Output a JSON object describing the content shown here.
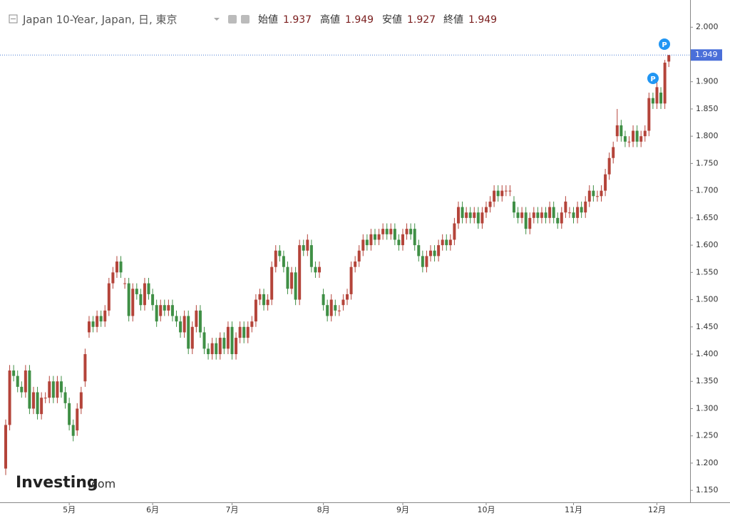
{
  "header": {
    "title": "Japan 10-Year, Japan, 日, 東京",
    "open_label": "始値",
    "high_label": "高値",
    "low_label": "安値",
    "close_label": "終値"
  },
  "logo": {
    "brand": "Investing",
    "suffix": ".com"
  },
  "chart_data": {
    "type": "candlestick",
    "up_color": "#b4443a",
    "down_color": "#3f8f45",
    "categories": [
      null,
      null,
      null,
      null,
      null,
      null,
      null,
      null,
      null,
      null,
      null,
      null,
      null,
      null,
      null,
      null,
      "5月",
      null,
      null,
      null,
      null,
      null,
      null,
      null,
      null,
      null,
      null,
      null,
      null,
      null,
      null,
      null,
      null,
      null,
      null,
      null,
      null,
      "6月",
      null,
      null,
      null,
      null,
      null,
      null,
      null,
      null,
      null,
      null,
      null,
      null,
      null,
      null,
      null,
      null,
      null,
      null,
      null,
      "7月",
      null,
      null,
      null,
      null,
      null,
      null,
      null,
      null,
      null,
      null,
      null,
      null,
      null,
      null,
      null,
      null,
      null,
      null,
      null,
      null,
      null,
      null,
      "8月",
      null,
      null,
      null,
      null,
      null,
      null,
      null,
      null,
      null,
      null,
      null,
      null,
      null,
      null,
      null,
      null,
      null,
      null,
      null,
      "9月",
      null,
      null,
      null,
      null,
      null,
      null,
      null,
      null,
      null,
      null,
      null,
      null,
      null,
      null,
      null,
      null,
      null,
      null,
      null,
      null,
      "10月",
      null,
      null,
      null,
      null,
      null,
      null,
      null,
      null,
      null,
      null,
      null,
      null,
      null,
      null,
      null,
      null,
      null,
      null,
      null,
      null,
      null,
      "11月",
      null,
      null,
      null,
      null,
      null,
      null,
      null,
      null,
      null,
      null,
      null,
      null,
      null,
      null,
      null,
      null,
      null,
      null,
      null,
      null,
      "12月",
      null,
      null,
      null
    ],
    "open": [
      1.19,
      1.27,
      1.37,
      1.36,
      1.34,
      1.33,
      1.37,
      1.3,
      1.33,
      1.29,
      1.32,
      1.32,
      1.35,
      1.32,
      1.35,
      1.33,
      1.31,
      1.27,
      1.26,
      1.3,
      1.35,
      1.44,
      1.46,
      1.45,
      1.47,
      1.46,
      1.48,
      1.53,
      1.55,
      1.57,
      1.53,
      1.53,
      1.47,
      1.52,
      1.51,
      1.49,
      1.53,
      1.51,
      1.49,
      1.47,
      1.49,
      1.48,
      1.49,
      1.47,
      1.46,
      1.44,
      1.47,
      1.41,
      1.45,
      1.48,
      1.44,
      1.41,
      1.4,
      1.42,
      1.4,
      1.43,
      1.41,
      1.45,
      1.4,
      1.43,
      1.45,
      1.43,
      1.45,
      1.46,
      1.5,
      1.51,
      1.49,
      1.5,
      1.56,
      1.59,
      1.58,
      1.56,
      1.52,
      1.55,
      1.5,
      1.6,
      1.59,
      1.6,
      1.56,
      1.55,
      1.51,
      1.49,
      1.47,
      1.49,
      1.48,
      1.49,
      1.5,
      1.51,
      1.56,
      1.57,
      1.59,
      1.61,
      1.6,
      1.62,
      1.61,
      1.62,
      1.63,
      1.62,
      1.63,
      1.61,
      1.6,
      1.62,
      1.63,
      1.63,
      1.6,
      1.58,
      1.56,
      1.58,
      1.59,
      1.58,
      1.6,
      1.61,
      1.6,
      1.61,
      1.64,
      1.67,
      1.65,
      1.66,
      1.65,
      1.66,
      1.64,
      1.66,
      1.67,
      1.68,
      1.7,
      1.69,
      1.7,
      1.7,
      1.68,
      1.66,
      1.65,
      1.66,
      1.63,
      1.65,
      1.66,
      1.65,
      1.66,
      1.65,
      1.67,
      1.65,
      1.64,
      1.66,
      1.66,
      1.66,
      1.65,
      1.67,
      1.66,
      1.68,
      1.7,
      1.69,
      1.69,
      1.7,
      1.73,
      1.76,
      1.8,
      1.82,
      1.8,
      1.79,
      1.79,
      1.81,
      1.79,
      1.8,
      1.81,
      1.87,
      1.86,
      1.88,
      1.86,
      1.937
    ],
    "high": [
      1.28,
      1.38,
      1.38,
      1.37,
      1.35,
      1.38,
      1.38,
      1.34,
      1.34,
      1.33,
      1.33,
      1.36,
      1.36,
      1.36,
      1.36,
      1.34,
      1.32,
      1.28,
      1.31,
      1.34,
      1.41,
      1.47,
      1.47,
      1.48,
      1.48,
      1.49,
      1.54,
      1.56,
      1.58,
      1.58,
      1.54,
      1.54,
      1.53,
      1.53,
      1.52,
      1.54,
      1.54,
      1.52,
      1.5,
      1.5,
      1.5,
      1.5,
      1.5,
      1.48,
      1.47,
      1.48,
      1.48,
      1.46,
      1.49,
      1.49,
      1.45,
      1.42,
      1.43,
      1.43,
      1.44,
      1.44,
      1.46,
      1.46,
      1.44,
      1.46,
      1.46,
      1.46,
      1.47,
      1.51,
      1.52,
      1.52,
      1.51,
      1.57,
      1.6,
      1.6,
      1.59,
      1.57,
      1.56,
      1.56,
      1.61,
      1.61,
      1.62,
      1.61,
      1.57,
      1.57,
      1.52,
      1.5,
      1.51,
      1.5,
      1.49,
      1.51,
      1.52,
      1.57,
      1.58,
      1.6,
      1.62,
      1.62,
      1.63,
      1.63,
      1.63,
      1.64,
      1.64,
      1.64,
      1.64,
      1.62,
      1.63,
      1.64,
      1.64,
      1.64,
      1.61,
      1.59,
      1.59,
      1.6,
      1.6,
      1.61,
      1.62,
      1.62,
      1.62,
      1.65,
      1.68,
      1.68,
      1.67,
      1.67,
      1.67,
      1.67,
      1.67,
      1.68,
      1.69,
      1.71,
      1.71,
      1.71,
      1.71,
      1.71,
      1.69,
      1.67,
      1.67,
      1.67,
      1.66,
      1.67,
      1.67,
      1.67,
      1.67,
      1.68,
      1.68,
      1.66,
      1.67,
      1.69,
      1.67,
      1.67,
      1.68,
      1.68,
      1.69,
      1.71,
      1.71,
      1.7,
      1.71,
      1.74,
      1.77,
      1.79,
      1.85,
      1.83,
      1.81,
      1.8,
      1.82,
      1.82,
      1.81,
      1.82,
      1.88,
      1.88,
      1.9,
      1.89,
      1.94,
      1.949
    ],
    "low": [
      1.178,
      1.26,
      1.35,
      1.33,
      1.32,
      1.32,
      1.29,
      1.29,
      1.28,
      1.28,
      1.31,
      1.31,
      1.31,
      1.31,
      1.32,
      1.3,
      1.26,
      1.24,
      1.25,
      1.29,
      1.34,
      1.43,
      1.44,
      1.44,
      1.45,
      1.45,
      1.47,
      1.52,
      1.54,
      1.54,
      1.52,
      1.46,
      1.46,
      1.5,
      1.48,
      1.48,
      1.5,
      1.48,
      1.45,
      1.46,
      1.47,
      1.47,
      1.46,
      1.45,
      1.43,
      1.43,
      1.4,
      1.4,
      1.44,
      1.43,
      1.4,
      1.39,
      1.39,
      1.39,
      1.39,
      1.4,
      1.4,
      1.39,
      1.39,
      1.42,
      1.42,
      1.42,
      1.44,
      1.45,
      1.49,
      1.48,
      1.48,
      1.49,
      1.55,
      1.57,
      1.55,
      1.51,
      1.51,
      1.49,
      1.49,
      1.58,
      1.58,
      1.55,
      1.54,
      1.54,
      1.48,
      1.46,
      1.46,
      1.47,
      1.47,
      1.48,
      1.49,
      1.5,
      1.55,
      1.56,
      1.58,
      1.59,
      1.59,
      1.6,
      1.6,
      1.61,
      1.61,
      1.61,
      1.6,
      1.59,
      1.59,
      1.61,
      1.61,
      1.59,
      1.57,
      1.55,
      1.55,
      1.57,
      1.57,
      1.57,
      1.59,
      1.59,
      1.59,
      1.6,
      1.63,
      1.64,
      1.64,
      1.64,
      1.64,
      1.63,
      1.63,
      1.65,
      1.66,
      1.67,
      1.68,
      1.68,
      1.69,
      1.69,
      1.65,
      1.64,
      1.64,
      1.62,
      1.62,
      1.64,
      1.64,
      1.64,
      1.64,
      1.64,
      1.64,
      1.63,
      1.63,
      1.65,
      1.65,
      1.64,
      1.64,
      1.65,
      1.65,
      1.67,
      1.68,
      1.68,
      1.68,
      1.69,
      1.72,
      1.75,
      1.79,
      1.79,
      1.78,
      1.78,
      1.78,
      1.78,
      1.78,
      1.79,
      1.8,
      1.85,
      1.85,
      1.85,
      1.85,
      1.927
    ],
    "close": [
      1.27,
      1.37,
      1.36,
      1.34,
      1.33,
      1.37,
      1.3,
      1.33,
      1.29,
      1.32,
      1.32,
      1.35,
      1.32,
      1.35,
      1.33,
      1.31,
      1.27,
      1.25,
      1.3,
      1.33,
      1.4,
      1.46,
      1.45,
      1.47,
      1.46,
      1.48,
      1.53,
      1.55,
      1.57,
      1.55,
      1.53,
      1.47,
      1.52,
      1.51,
      1.49,
      1.53,
      1.51,
      1.49,
      1.46,
      1.49,
      1.48,
      1.49,
      1.47,
      1.46,
      1.44,
      1.47,
      1.41,
      1.45,
      1.48,
      1.44,
      1.41,
      1.4,
      1.42,
      1.4,
      1.43,
      1.41,
      1.45,
      1.4,
      1.43,
      1.45,
      1.43,
      1.45,
      1.46,
      1.5,
      1.51,
      1.49,
      1.5,
      1.56,
      1.59,
      1.58,
      1.56,
      1.52,
      1.55,
      1.5,
      1.6,
      1.59,
      1.61,
      1.56,
      1.55,
      1.56,
      1.49,
      1.47,
      1.5,
      1.48,
      1.48,
      1.5,
      1.51,
      1.56,
      1.57,
      1.59,
      1.61,
      1.6,
      1.62,
      1.61,
      1.62,
      1.63,
      1.62,
      1.63,
      1.61,
      1.6,
      1.62,
      1.63,
      1.62,
      1.6,
      1.58,
      1.56,
      1.58,
      1.59,
      1.58,
      1.6,
      1.61,
      1.6,
      1.61,
      1.64,
      1.67,
      1.65,
      1.66,
      1.65,
      1.66,
      1.64,
      1.66,
      1.67,
      1.68,
      1.7,
      1.69,
      1.7,
      1.7,
      1.7,
      1.66,
      1.65,
      1.66,
      1.63,
      1.65,
      1.66,
      1.65,
      1.66,
      1.65,
      1.67,
      1.65,
      1.64,
      1.66,
      1.68,
      1.66,
      1.65,
      1.67,
      1.66,
      1.68,
      1.7,
      1.69,
      1.69,
      1.7,
      1.73,
      1.76,
      1.78,
      1.82,
      1.8,
      1.79,
      1.79,
      1.81,
      1.79,
      1.8,
      1.81,
      1.87,
      1.86,
      1.89,
      1.86,
      1.935,
      1.949
    ],
    "ylim": [
      1.128,
      2.05
    ],
    "yticks": [
      {
        "value": 1.15,
        "label": "1.150"
      },
      {
        "value": 1.2,
        "label": "1.200"
      },
      {
        "value": 1.25,
        "label": "1.250"
      },
      {
        "value": 1.3,
        "label": "1.300"
      },
      {
        "value": 1.35,
        "label": "1.350"
      },
      {
        "value": 1.4,
        "label": "1.400"
      },
      {
        "value": 1.45,
        "label": "1.450"
      },
      {
        "value": 1.5,
        "label": "1.500"
      },
      {
        "value": 1.55,
        "label": "1.550"
      },
      {
        "value": 1.6,
        "label": "1.600"
      },
      {
        "value": 1.65,
        "label": "1.650"
      },
      {
        "value": 1.7,
        "label": "1.700"
      },
      {
        "value": 1.75,
        "label": "1.750"
      },
      {
        "value": 1.8,
        "label": "1.800"
      },
      {
        "value": 1.85,
        "label": "1.850"
      },
      {
        "value": 1.9,
        "label": "1.900"
      },
      {
        "value": 1.95,
        "label": "1.950"
      },
      {
        "value": 2.0,
        "label": "2.000"
      }
    ]
  }
}
